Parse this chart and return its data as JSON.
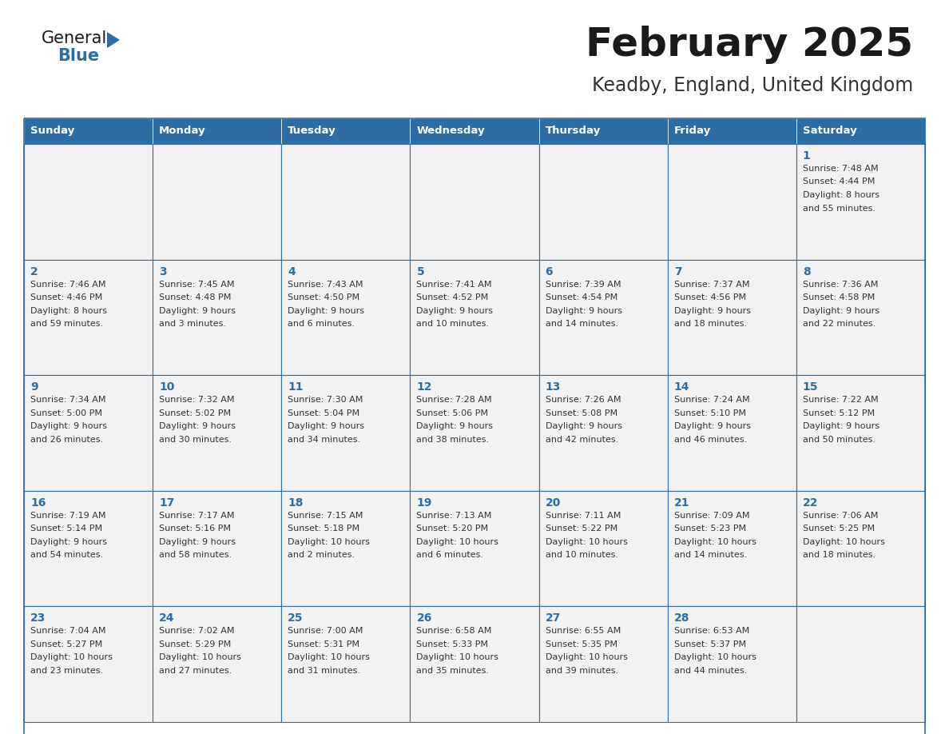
{
  "title": "February 2025",
  "subtitle": "Keadby, England, United Kingdom",
  "days_of_week": [
    "Sunday",
    "Monday",
    "Tuesday",
    "Wednesday",
    "Thursday",
    "Friday",
    "Saturday"
  ],
  "header_bg": "#2E6DA4",
  "header_text": "#FFFFFF",
  "cell_bg": "#F2F2F2",
  "border_color": "#2E6DA4",
  "title_color": "#1a1a1a",
  "subtitle_color": "#333333",
  "day_num_color": "#2E6DA4",
  "text_color": "#333333",
  "weeks": [
    [
      {
        "day": "",
        "info": ""
      },
      {
        "day": "",
        "info": ""
      },
      {
        "day": "",
        "info": ""
      },
      {
        "day": "",
        "info": ""
      },
      {
        "day": "",
        "info": ""
      },
      {
        "day": "",
        "info": ""
      },
      {
        "day": "1",
        "info": "Sunrise: 7:48 AM\nSunset: 4:44 PM\nDaylight: 8 hours\nand 55 minutes."
      }
    ],
    [
      {
        "day": "2",
        "info": "Sunrise: 7:46 AM\nSunset: 4:46 PM\nDaylight: 8 hours\nand 59 minutes."
      },
      {
        "day": "3",
        "info": "Sunrise: 7:45 AM\nSunset: 4:48 PM\nDaylight: 9 hours\nand 3 minutes."
      },
      {
        "day": "4",
        "info": "Sunrise: 7:43 AM\nSunset: 4:50 PM\nDaylight: 9 hours\nand 6 minutes."
      },
      {
        "day": "5",
        "info": "Sunrise: 7:41 AM\nSunset: 4:52 PM\nDaylight: 9 hours\nand 10 minutes."
      },
      {
        "day": "6",
        "info": "Sunrise: 7:39 AM\nSunset: 4:54 PM\nDaylight: 9 hours\nand 14 minutes."
      },
      {
        "day": "7",
        "info": "Sunrise: 7:37 AM\nSunset: 4:56 PM\nDaylight: 9 hours\nand 18 minutes."
      },
      {
        "day": "8",
        "info": "Sunrise: 7:36 AM\nSunset: 4:58 PM\nDaylight: 9 hours\nand 22 minutes."
      }
    ],
    [
      {
        "day": "9",
        "info": "Sunrise: 7:34 AM\nSunset: 5:00 PM\nDaylight: 9 hours\nand 26 minutes."
      },
      {
        "day": "10",
        "info": "Sunrise: 7:32 AM\nSunset: 5:02 PM\nDaylight: 9 hours\nand 30 minutes."
      },
      {
        "day": "11",
        "info": "Sunrise: 7:30 AM\nSunset: 5:04 PM\nDaylight: 9 hours\nand 34 minutes."
      },
      {
        "day": "12",
        "info": "Sunrise: 7:28 AM\nSunset: 5:06 PM\nDaylight: 9 hours\nand 38 minutes."
      },
      {
        "day": "13",
        "info": "Sunrise: 7:26 AM\nSunset: 5:08 PM\nDaylight: 9 hours\nand 42 minutes."
      },
      {
        "day": "14",
        "info": "Sunrise: 7:24 AM\nSunset: 5:10 PM\nDaylight: 9 hours\nand 46 minutes."
      },
      {
        "day": "15",
        "info": "Sunrise: 7:22 AM\nSunset: 5:12 PM\nDaylight: 9 hours\nand 50 minutes."
      }
    ],
    [
      {
        "day": "16",
        "info": "Sunrise: 7:19 AM\nSunset: 5:14 PM\nDaylight: 9 hours\nand 54 minutes."
      },
      {
        "day": "17",
        "info": "Sunrise: 7:17 AM\nSunset: 5:16 PM\nDaylight: 9 hours\nand 58 minutes."
      },
      {
        "day": "18",
        "info": "Sunrise: 7:15 AM\nSunset: 5:18 PM\nDaylight: 10 hours\nand 2 minutes."
      },
      {
        "day": "19",
        "info": "Sunrise: 7:13 AM\nSunset: 5:20 PM\nDaylight: 10 hours\nand 6 minutes."
      },
      {
        "day": "20",
        "info": "Sunrise: 7:11 AM\nSunset: 5:22 PM\nDaylight: 10 hours\nand 10 minutes."
      },
      {
        "day": "21",
        "info": "Sunrise: 7:09 AM\nSunset: 5:23 PM\nDaylight: 10 hours\nand 14 minutes."
      },
      {
        "day": "22",
        "info": "Sunrise: 7:06 AM\nSunset: 5:25 PM\nDaylight: 10 hours\nand 18 minutes."
      }
    ],
    [
      {
        "day": "23",
        "info": "Sunrise: 7:04 AM\nSunset: 5:27 PM\nDaylight: 10 hours\nand 23 minutes."
      },
      {
        "day": "24",
        "info": "Sunrise: 7:02 AM\nSunset: 5:29 PM\nDaylight: 10 hours\nand 27 minutes."
      },
      {
        "day": "25",
        "info": "Sunrise: 7:00 AM\nSunset: 5:31 PM\nDaylight: 10 hours\nand 31 minutes."
      },
      {
        "day": "26",
        "info": "Sunrise: 6:58 AM\nSunset: 5:33 PM\nDaylight: 10 hours\nand 35 minutes."
      },
      {
        "day": "27",
        "info": "Sunrise: 6:55 AM\nSunset: 5:35 PM\nDaylight: 10 hours\nand 39 minutes."
      },
      {
        "day": "28",
        "info": "Sunrise: 6:53 AM\nSunset: 5:37 PM\nDaylight: 10 hours\nand 44 minutes."
      },
      {
        "day": "",
        "info": ""
      }
    ]
  ],
  "fig_width": 11.88,
  "fig_height": 9.18,
  "dpi": 100
}
